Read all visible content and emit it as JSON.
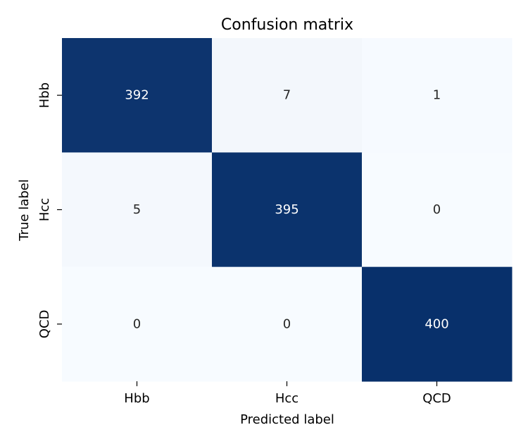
{
  "chart_data": {
    "type": "heatmap",
    "title": "Confusion matrix",
    "xlabel": "Predicted label",
    "ylabel": "True label",
    "x_categories": [
      "Hbb",
      "Hcc",
      "QCD"
    ],
    "y_categories": [
      "Hbb",
      "Hcc",
      "QCD"
    ],
    "values": [
      [
        392,
        7,
        1
      ],
      [
        5,
        395,
        0
      ],
      [
        0,
        0,
        400
      ]
    ],
    "value_range": [
      0,
      400
    ],
    "colormap": "Blues",
    "colors": {
      "low": "#f7fbff",
      "high": "#08306b",
      "text_on_dark": "#ffffff",
      "text_on_light": "#262626"
    },
    "colorbar": false,
    "grid": false
  }
}
